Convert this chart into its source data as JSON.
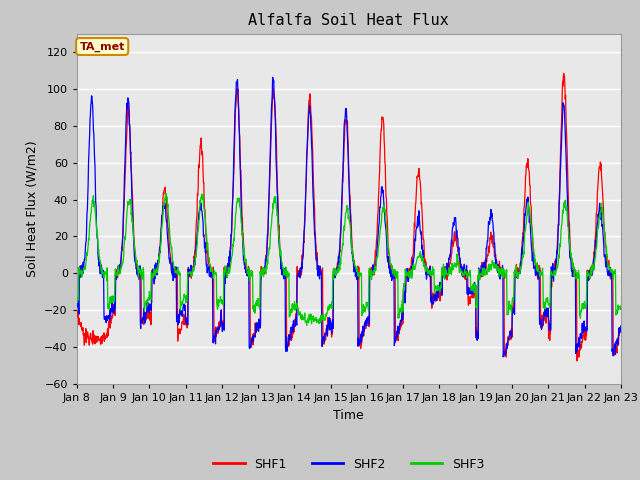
{
  "title": "Alfalfa Soil Heat Flux",
  "xlabel": "Time",
  "ylabel": "Soil Heat Flux (W/m2)",
  "ylim": [
    -60,
    130
  ],
  "yticks": [
    -60,
    -40,
    -20,
    0,
    20,
    40,
    60,
    80,
    100,
    120
  ],
  "fig_bg_color": "#c8c8c8",
  "plot_bg_color": "#e8e8e8",
  "grid_color": "#ffffff",
  "shf1_color": "#ff0000",
  "shf2_color": "#0000ff",
  "shf3_color": "#00cc00",
  "legend_entries": [
    "SHF1",
    "SHF2",
    "SHF3"
  ],
  "annotation_text": "TA_met",
  "annotation_box_facecolor": "#ffffcc",
  "annotation_box_edgecolor": "#cc8800",
  "n_days": 15,
  "points_per_day": 96,
  "start_day": 8
}
